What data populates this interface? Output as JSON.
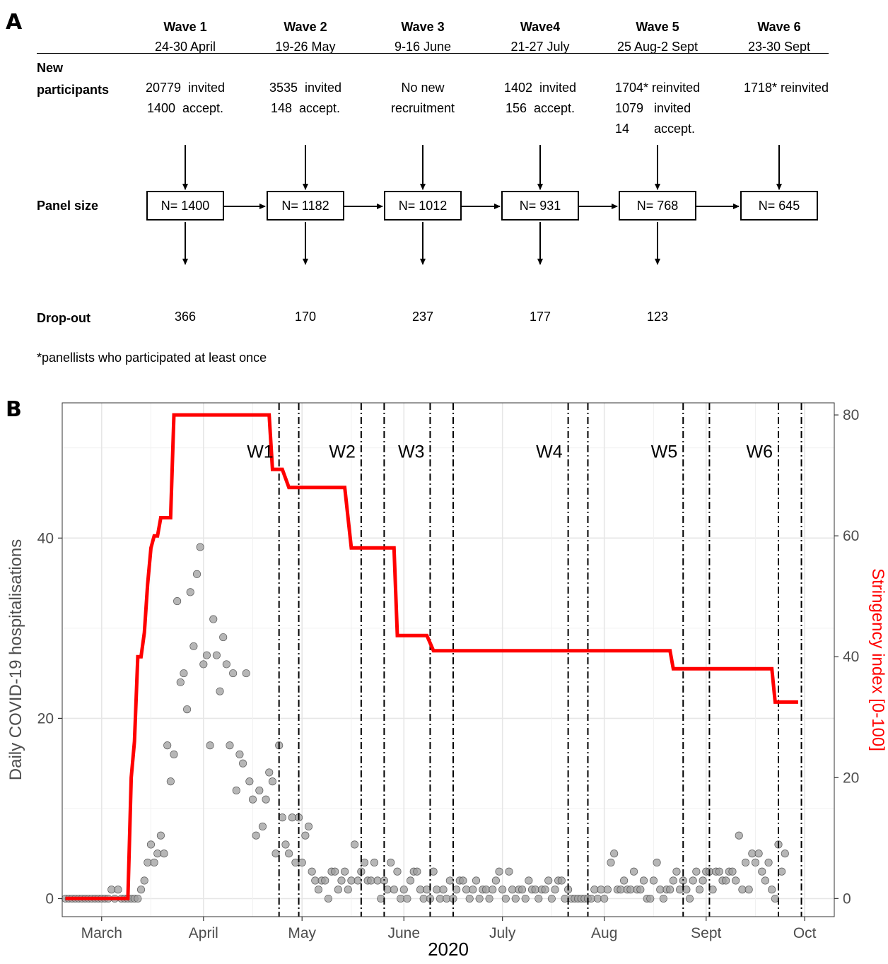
{
  "panel_a": {
    "letter": "A",
    "waves": [
      {
        "title": "Wave 1",
        "dates": "24-30 April",
        "new": [
          "20779  invited",
          "1400  accept."
        ],
        "panel": "N= 1400",
        "dropout": "366"
      },
      {
        "title": "Wave 2",
        "dates": "19-26  May",
        "new": [
          "3535  invited",
          "148  accept."
        ],
        "panel": "N= 1182",
        "dropout": "170"
      },
      {
        "title": "Wave  3",
        "dates": "9-16  June",
        "new": [
          "No new",
          "recruitment"
        ],
        "panel": "N= 1012",
        "dropout": "237"
      },
      {
        "title": "Wave4",
        "dates": "21-27  July",
        "new": [
          "1402  invited",
          "156  accept."
        ],
        "panel": "N= 931",
        "dropout": "177"
      },
      {
        "title": "Wave 5",
        "dates": "25 Aug-2 Sept",
        "new": [
          "1704* reinvited",
          "1079   invited",
          "14       accept."
        ],
        "panel": "N= 768",
        "dropout": "123"
      },
      {
        "title": "Wave 6",
        "dates": "23-30  Sept",
        "new": [
          "1718* reinvited"
        ],
        "panel": "N= 645",
        "dropout": ""
      }
    ],
    "row_labels": {
      "new": [
        "New",
        "participants"
      ],
      "panel": "Panel size",
      "dropout": "Drop-out"
    },
    "footnote": "*panellists who participated at least once"
  },
  "chart_data": {
    "letter": "B",
    "type": "scatter",
    "xlabel": "2020",
    "ylabel": "Daily COVID-19 hospitalisations",
    "y2label": "Stringency index [0-100]",
    "xlim": [
      "2020-02-18",
      "2020-10-10"
    ],
    "ylim": [
      -2,
      55
    ],
    "y2lim": [
      -3,
      82
    ],
    "x_ticks": [
      {
        "label": "March",
        "date": "2020-03-01"
      },
      {
        "label": "April",
        "date": "2020-04-01"
      },
      {
        "label": "May",
        "date": "2020-05-01"
      },
      {
        "label": "June",
        "date": "2020-06-01"
      },
      {
        "label": "July",
        "date": "2020-07-01"
      },
      {
        "label": "Aug",
        "date": "2020-08-01"
      },
      {
        "label": "Sept",
        "date": "2020-09-01"
      },
      {
        "label": "Oct",
        "date": "2020-10-01"
      }
    ],
    "y_ticks": [
      0,
      20,
      40
    ],
    "y2_ticks": [
      0,
      20,
      40,
      60,
      80
    ],
    "grid": true,
    "colors": {
      "stringency": "#ff0000",
      "points": "#9e9e9e",
      "points_edge": "#5a5a5a",
      "grid": "#e6e6e6",
      "y2label": "#ff0000"
    },
    "wave_lines": [
      {
        "label": "W1",
        "start": "2020-04-24",
        "end": "2020-04-30"
      },
      {
        "label": "W2",
        "start": "2020-05-19",
        "end": "2020-05-26"
      },
      {
        "label": "W3",
        "start": "2020-06-09",
        "end": "2020-06-16"
      },
      {
        "label": "W4",
        "start": "2020-07-21",
        "end": "2020-07-27"
      },
      {
        "label": "W5",
        "start": "2020-08-25",
        "end": "2020-09-02"
      },
      {
        "label": "W6",
        "start": "2020-09-23",
        "end": "2020-09-30"
      }
    ],
    "stringency_series": {
      "name": "Stringency index",
      "points": [
        [
          "2020-02-19",
          0
        ],
        [
          "2020-03-09",
          0
        ],
        [
          "2020-03-10",
          20
        ],
        [
          "2020-03-11",
          26
        ],
        [
          "2020-03-12",
          40
        ],
        [
          "2020-03-13",
          40
        ],
        [
          "2020-03-14",
          44
        ],
        [
          "2020-03-15",
          52
        ],
        [
          "2020-03-16",
          58
        ],
        [
          "2020-03-17",
          60
        ],
        [
          "2020-03-18",
          60
        ],
        [
          "2020-03-19",
          63
        ],
        [
          "2020-03-22",
          63
        ],
        [
          "2020-03-23",
          80
        ],
        [
          "2020-04-21",
          80
        ],
        [
          "2020-04-22",
          71
        ],
        [
          "2020-04-25",
          71
        ],
        [
          "2020-04-27",
          68
        ],
        [
          "2020-05-14",
          68
        ],
        [
          "2020-05-16",
          58
        ],
        [
          "2020-05-29",
          58
        ],
        [
          "2020-05-30",
          43.5
        ],
        [
          "2020-06-08",
          43.5
        ],
        [
          "2020-06-10",
          41
        ],
        [
          "2020-08-21",
          41
        ],
        [
          "2020-08-22",
          38
        ],
        [
          "2020-09-21",
          38
        ],
        [
          "2020-09-22",
          32.5
        ],
        [
          "2020-09-29",
          32.5
        ]
      ]
    },
    "hospitalisations_series": {
      "name": "Daily COVID-19 hospitalisations",
      "start_date": "2020-02-19",
      "values": [
        0,
        0,
        0,
        0,
        0,
        0,
        0,
        0,
        0,
        0,
        0,
        0,
        0,
        0,
        1,
        0,
        1,
        0,
        0,
        0,
        0,
        0,
        0,
        1,
        2,
        4,
        6,
        4,
        5,
        7,
        5,
        17,
        13,
        16,
        33,
        24,
        25,
        21,
        34,
        28,
        36,
        39,
        26,
        27,
        17,
        31,
        27,
        23,
        29,
        26,
        17,
        25,
        12,
        16,
        15,
        25,
        13,
        11,
        7,
        12,
        8,
        11,
        14,
        13,
        5,
        17,
        9,
        6,
        5,
        9,
        4,
        9,
        4,
        7,
        8,
        3,
        2,
        1,
        2,
        2,
        0,
        3,
        3,
        1,
        2,
        3,
        1,
        2,
        6,
        2,
        3,
        4,
        2,
        2,
        4,
        2,
        0,
        2,
        1,
        4,
        1,
        3,
        0,
        1,
        0,
        2,
        3,
        3,
        1,
        0,
        1,
        0,
        3,
        1,
        0,
        1,
        0,
        2,
        0,
        1,
        2,
        2,
        1,
        0,
        1,
        2,
        0,
        1,
        1,
        0,
        1,
        2,
        3,
        1,
        0,
        3,
        1,
        0,
        1,
        1,
        0,
        2,
        1,
        1,
        0,
        1,
        1,
        2,
        0,
        1,
        2,
        2,
        0,
        1,
        0,
        0,
        0,
        0,
        0,
        0,
        0,
        1,
        0,
        1,
        0,
        1,
        4,
        5,
        1,
        1,
        2,
        1,
        1,
        3,
        1,
        1,
        2,
        0,
        0,
        2,
        4,
        1,
        0,
        1,
        1,
        2,
        3,
        1,
        2,
        1,
        0,
        2,
        3,
        1,
        2,
        3,
        3,
        1,
        3,
        3,
        2,
        2,
        3,
        3,
        2,
        7,
        1,
        4,
        1,
        5,
        4,
        5,
        3,
        2,
        4,
        1,
        0,
        6,
        3,
        5
      ]
    }
  }
}
